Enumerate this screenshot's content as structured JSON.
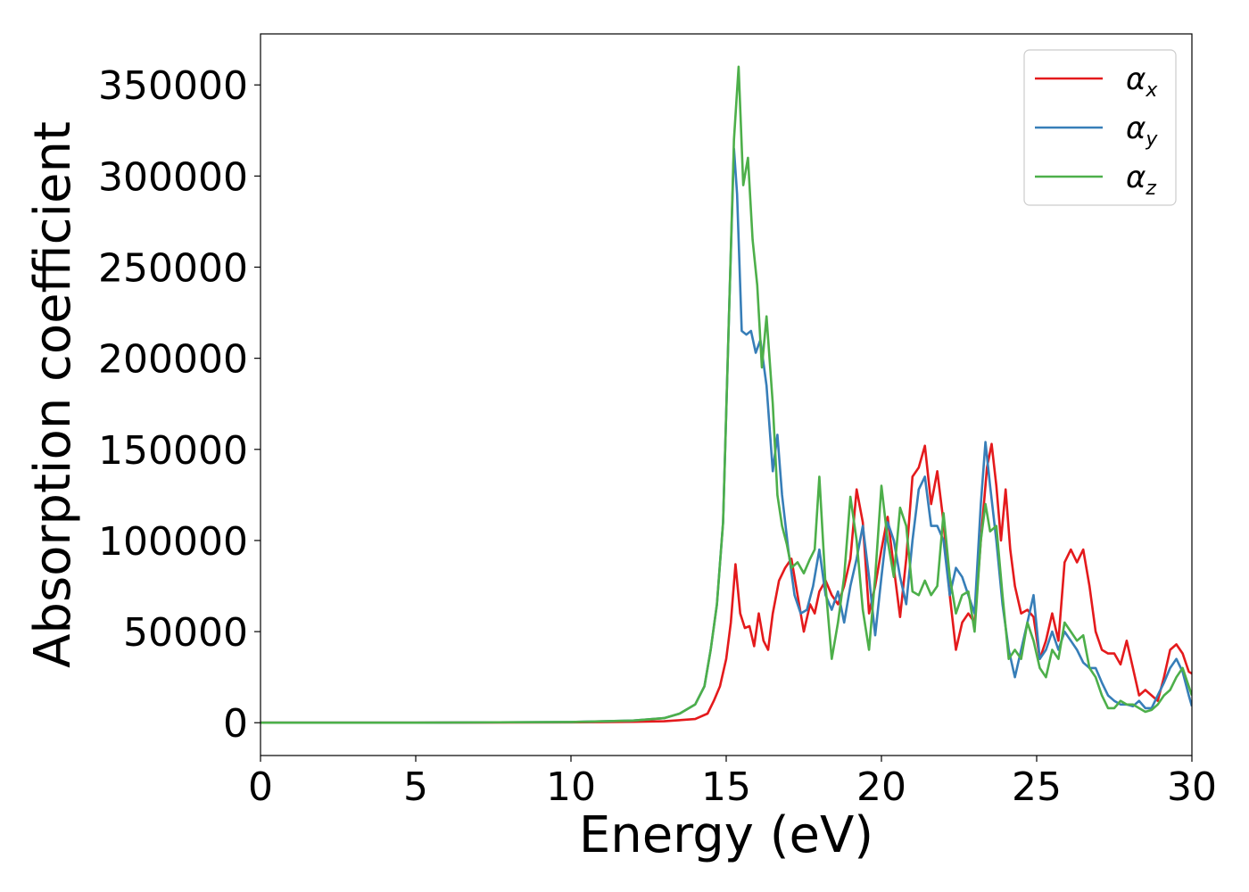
{
  "chart_data": {
    "type": "line",
    "xlabel": "Energy (eV)",
    "ylabel": "Absorption coefficient",
    "xlim": [
      0,
      30
    ],
    "ylim": [
      -18000,
      378000
    ],
    "xticks": [
      0,
      5,
      10,
      15,
      20,
      25,
      30
    ],
    "xtick_labels": [
      "0",
      "5",
      "10",
      "15",
      "20",
      "25",
      "30"
    ],
    "yticks": [
      0,
      50000,
      100000,
      150000,
      200000,
      250000,
      300000,
      350000
    ],
    "ytick_labels": [
      "0",
      "50000",
      "100000",
      "150000",
      "200000",
      "250000",
      "300000",
      "350000"
    ],
    "grid": false,
    "legend_position": "top-right",
    "series": [
      {
        "name": "α_x",
        "label_main": "α",
        "label_sub": "x",
        "color": "#e41a1c",
        "x": [
          0,
          5,
          10,
          12,
          13,
          14,
          14.4,
          14.6,
          14.8,
          15.0,
          15.15,
          15.3,
          15.45,
          15.6,
          15.75,
          15.9,
          16.05,
          16.2,
          16.35,
          16.5,
          16.7,
          16.9,
          17.1,
          17.3,
          17.5,
          17.7,
          17.85,
          18.0,
          18.2,
          18.4,
          18.6,
          18.8,
          19.0,
          19.2,
          19.4,
          19.6,
          19.8,
          20.0,
          20.2,
          20.4,
          20.6,
          20.8,
          21.0,
          21.2,
          21.4,
          21.6,
          21.8,
          22.0,
          22.2,
          22.4,
          22.6,
          22.8,
          23.0,
          23.2,
          23.4,
          23.55,
          23.7,
          23.85,
          24.0,
          24.15,
          24.3,
          24.5,
          24.7,
          24.9,
          25.1,
          25.3,
          25.5,
          25.7,
          25.9,
          26.1,
          26.3,
          26.5,
          26.7,
          26.9,
          27.1,
          27.3,
          27.5,
          27.7,
          27.9,
          28.1,
          28.3,
          28.5,
          28.7,
          28.9,
          29.1,
          29.3,
          29.5,
          29.7,
          29.9,
          30
        ],
        "y": [
          0,
          0,
          200,
          500,
          800,
          2000,
          5000,
          12000,
          20000,
          35000,
          55000,
          87000,
          60000,
          52000,
          53000,
          42000,
          60000,
          45000,
          40000,
          60000,
          78000,
          85000,
          90000,
          70000,
          50000,
          65000,
          60000,
          72000,
          78000,
          70000,
          65000,
          75000,
          90000,
          128000,
          110000,
          60000,
          75000,
          95000,
          113000,
          85000,
          58000,
          90000,
          135000,
          140000,
          152000,
          120000,
          138000,
          110000,
          70000,
          40000,
          55000,
          60000,
          55000,
          100000,
          140000,
          153000,
          130000,
          100000,
          128000,
          95000,
          75000,
          60000,
          62000,
          58000,
          35000,
          45000,
          60000,
          45000,
          88000,
          95000,
          88000,
          95000,
          75000,
          50000,
          40000,
          38000,
          38000,
          32000,
          45000,
          30000,
          15000,
          18000,
          15000,
          12000,
          25000,
          40000,
          43000,
          38000,
          28000,
          27000
        ]
      },
      {
        "name": "α_y",
        "label_main": "α",
        "label_sub": "y",
        "color": "#377eb8",
        "x": [
          0,
          5,
          10,
          12,
          13,
          13.5,
          14.0,
          14.3,
          14.5,
          14.7,
          14.9,
          15.1,
          15.25,
          15.35,
          15.5,
          15.65,
          15.8,
          15.95,
          16.1,
          16.3,
          16.5,
          16.65,
          16.8,
          17.0,
          17.2,
          17.4,
          17.6,
          17.8,
          18.0,
          18.2,
          18.4,
          18.6,
          18.8,
          19.0,
          19.2,
          19.4,
          19.6,
          19.8,
          20.0,
          20.2,
          20.4,
          20.6,
          20.8,
          21.0,
          21.2,
          21.4,
          21.6,
          21.8,
          22.0,
          22.2,
          22.4,
          22.6,
          22.8,
          23.0,
          23.2,
          23.35,
          23.5,
          23.7,
          23.9,
          24.1,
          24.3,
          24.5,
          24.7,
          24.9,
          25.1,
          25.3,
          25.5,
          25.7,
          25.9,
          26.1,
          26.3,
          26.5,
          26.7,
          26.9,
          27.1,
          27.3,
          27.5,
          27.7,
          27.9,
          28.1,
          28.3,
          28.5,
          28.7,
          28.9,
          29.1,
          29.3,
          29.5,
          29.7,
          29.9,
          30
        ],
        "y": [
          0,
          0,
          400,
          1200,
          2500,
          5000,
          10000,
          20000,
          40000,
          65000,
          110000,
          230000,
          315000,
          290000,
          215000,
          213000,
          215000,
          203000,
          210000,
          185000,
          138000,
          158000,
          125000,
          95000,
          70000,
          60000,
          62000,
          75000,
          95000,
          70000,
          62000,
          72000,
          55000,
          75000,
          90000,
          108000,
          80000,
          48000,
          80000,
          110000,
          100000,
          80000,
          65000,
          100000,
          128000,
          135000,
          108000,
          108000,
          100000,
          70000,
          85000,
          80000,
          70000,
          60000,
          120000,
          154000,
          130000,
          100000,
          65000,
          40000,
          25000,
          40000,
          55000,
          70000,
          35000,
          40000,
          50000,
          40000,
          50000,
          45000,
          40000,
          33000,
          30000,
          30000,
          22000,
          15000,
          12000,
          10000,
          10000,
          9000,
          12000,
          8000,
          8000,
          15000,
          22000,
          30000,
          35000,
          28000,
          15000,
          9000
        ]
      },
      {
        "name": "α_z",
        "label_main": "α",
        "label_sub": "z",
        "color": "#4daf4a",
        "x": [
          0,
          5,
          10,
          12,
          13,
          13.5,
          14.0,
          14.3,
          14.5,
          14.7,
          14.9,
          15.1,
          15.25,
          15.4,
          15.55,
          15.7,
          15.85,
          16.0,
          16.15,
          16.3,
          16.5,
          16.65,
          16.8,
          16.95,
          17.1,
          17.3,
          17.5,
          17.7,
          17.85,
          18.0,
          18.2,
          18.4,
          18.6,
          18.8,
          19.0,
          19.2,
          19.4,
          19.6,
          19.8,
          20.0,
          20.2,
          20.4,
          20.6,
          20.8,
          21.0,
          21.2,
          21.4,
          21.6,
          21.8,
          22.0,
          22.2,
          22.4,
          22.6,
          22.8,
          23.0,
          23.2,
          23.35,
          23.5,
          23.7,
          23.9,
          24.1,
          24.3,
          24.5,
          24.7,
          24.9,
          25.1,
          25.3,
          25.5,
          25.7,
          25.9,
          26.1,
          26.3,
          26.5,
          26.7,
          26.9,
          27.1,
          27.3,
          27.5,
          27.7,
          27.9,
          28.1,
          28.3,
          28.5,
          28.7,
          28.9,
          29.1,
          29.3,
          29.5,
          29.7,
          29.9,
          30
        ],
        "y": [
          0,
          0,
          400,
          1200,
          2500,
          5000,
          10000,
          20000,
          40000,
          65000,
          110000,
          230000,
          320000,
          360000,
          295000,
          310000,
          265000,
          240000,
          195000,
          223000,
          175000,
          125000,
          108000,
          98000,
          85000,
          88000,
          82000,
          90000,
          95000,
          135000,
          75000,
          35000,
          55000,
          80000,
          124000,
          100000,
          62000,
          40000,
          80000,
          130000,
          100000,
          80000,
          118000,
          108000,
          72000,
          70000,
          78000,
          70000,
          75000,
          115000,
          80000,
          60000,
          70000,
          72000,
          50000,
          100000,
          120000,
          105000,
          108000,
          70000,
          35000,
          40000,
          35000,
          55000,
          45000,
          30000,
          25000,
          40000,
          35000,
          55000,
          50000,
          45000,
          48000,
          30000,
          25000,
          15000,
          8000,
          8000,
          12000,
          10000,
          10000,
          8000,
          6000,
          7000,
          10000,
          15000,
          18000,
          25000,
          30000,
          20000,
          15000
        ]
      }
    ]
  }
}
